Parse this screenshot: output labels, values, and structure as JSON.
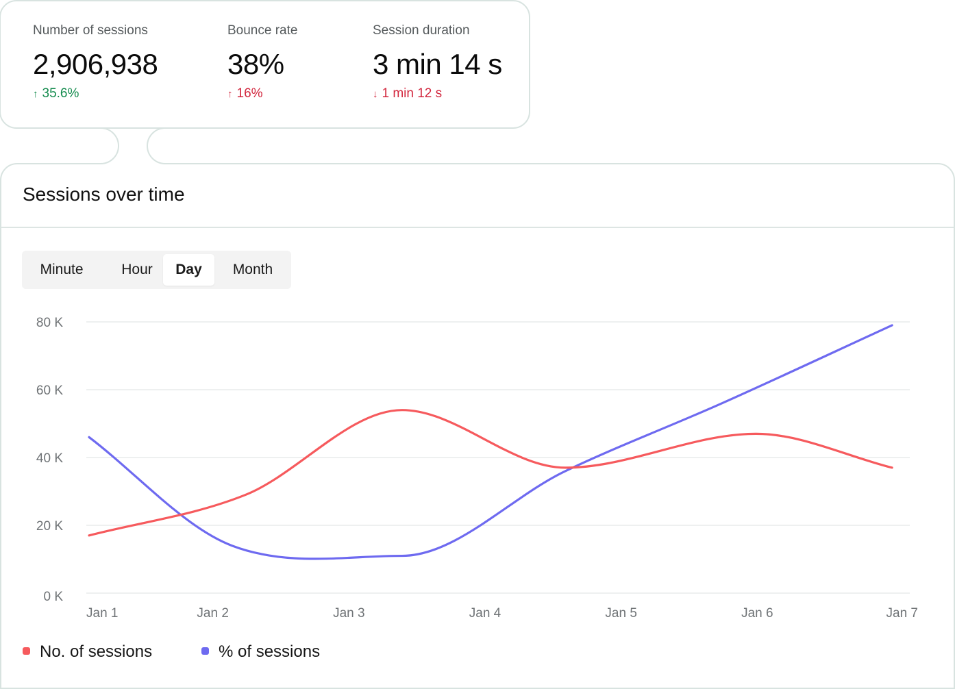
{
  "stats": [
    {
      "label": "Number of sessions",
      "value": "2,906,938",
      "change": "35.6%",
      "direction": "up",
      "tone": "positive"
    },
    {
      "label": "Bounce rate",
      "value": "38%",
      "change": "16%",
      "direction": "up",
      "tone": "negative"
    },
    {
      "label": "Session duration",
      "value": "3 min 14 s",
      "change": "1 min 12 s",
      "direction": "down",
      "tone": "negative"
    }
  ],
  "icons": {
    "up": "↑",
    "down": "↓"
  },
  "colors": {
    "positive": "#128a4c",
    "negative": "#d2263d",
    "series_sessions": "#f65a5d",
    "series_percent": "#6e6af0"
  },
  "card": {
    "title": "Sessions over time"
  },
  "time_range": {
    "options": [
      "Minute",
      "Hour",
      "Day",
      "Month"
    ],
    "selected": "Day"
  },
  "chart_data": {
    "type": "line",
    "x": [
      "Jan 1",
      "Jan 2",
      "Jan 3",
      "Jan 4",
      "Jan 5",
      "Jan 6",
      "Jan 7"
    ],
    "y_ticks": [
      "0 K",
      "20 K",
      "40 K",
      "60 K",
      "80 K"
    ],
    "ylim": [
      0,
      80000
    ],
    "grid": true,
    "legend_position": "bottom-left",
    "series": [
      {
        "name": "No. of sessions",
        "color": "#f65a5d",
        "points": [
          [
            0,
            17000
          ],
          [
            1.15,
            29000
          ],
          [
            2.3,
            54000
          ],
          [
            3.5,
            37000
          ],
          [
            4.9,
            47000
          ],
          [
            5.9,
            37000
          ]
        ]
      },
      {
        "name": "% of sessions",
        "color": "#6e6af0",
        "points": [
          [
            0,
            46000
          ],
          [
            1.05,
            14000
          ],
          [
            2.3,
            11000
          ],
          [
            3.5,
            36000
          ],
          [
            4.65,
            56000
          ],
          [
            5.9,
            79000
          ]
        ]
      }
    ]
  }
}
